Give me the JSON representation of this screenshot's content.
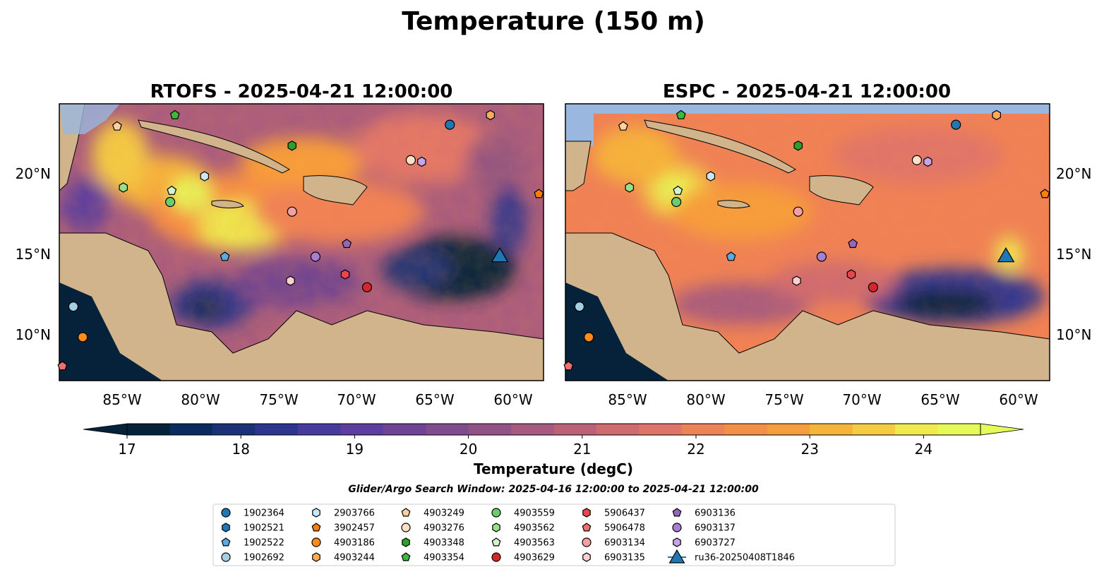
{
  "figure": {
    "suptitle": "Temperature (150 m)",
    "search_window": "Glider/Argo Search Window: 2025-04-16 12:00:00 to 2025-04-21 12:00:00"
  },
  "chart_data": [
    {
      "type": "heatmap",
      "title": "RTOFS - 2025-04-21 12:00:00",
      "variable": "Temperature at 150 m",
      "x_ticks": [
        "85°W",
        "80°W",
        "75°W",
        "70°W",
        "65°W",
        "60°W"
      ],
      "y_ticks": [
        "20°N",
        "15°N",
        "10°N"
      ],
      "xlim": [
        -89,
        -58
      ],
      "ylim": [
        7,
        24.2
      ],
      "features": [
        "warm eddies (24+ degC) near 80-75°W, 17-19°N",
        "cold pool (<17.5 degC) near 67-62°W, 11-13°N",
        "cold core near 81°W, 11°N"
      ]
    },
    {
      "type": "heatmap",
      "title": "ESPC - 2025-04-21 12:00:00",
      "variable": "Temperature at 150 m",
      "x_ticks": [
        "85°W",
        "80°W",
        "75°W",
        "70°W",
        "65°W",
        "60°W"
      ],
      "y_ticks": [
        "20°N",
        "15°N",
        "10°N"
      ],
      "xlim": [
        -89,
        -58
      ],
      "ylim": [
        7,
        24.2
      ],
      "features": [
        "broad warm field 22-24 degC",
        "warm blob near 80-82°W, 18-19°N",
        "cold band (<18 degC) along 62-67°W, 11-12°N"
      ]
    }
  ],
  "colorbar": {
    "label": "Temperature (degC)",
    "ticks": [
      "17",
      "18",
      "19",
      "20",
      "21",
      "22",
      "23",
      "24"
    ],
    "tick_values": [
      17,
      18,
      19,
      20,
      21,
      22,
      23,
      24
    ],
    "range": [
      16.5,
      24.75
    ],
    "extend": "both",
    "colors": [
      "#06223a",
      "#0b2b5e",
      "#1b3277",
      "#2d3591",
      "#463aa0",
      "#5d3d9f",
      "#6e4393",
      "#7f4c8c",
      "#905383",
      "#a65a7f",
      "#bc6278",
      "#cf6a71",
      "#e0746a",
      "#ef8156",
      "#f58f45",
      "#f79e3a",
      "#f5b43a",
      "#f3cc44",
      "#eeea4f",
      "#e5fa5a"
    ]
  },
  "platforms": [
    {
      "id": "1902364",
      "marker": "circle",
      "color": "#1f77b4",
      "lon": -64.0,
      "lat": 22.9
    },
    {
      "id": "1902521",
      "marker": "hexagon",
      "color": "#1f77b4",
      "lon": null,
      "lat": null
    },
    {
      "id": "1902522",
      "marker": "pentagon",
      "color": "#5aa9e0",
      "lon": -78.4,
      "lat": 14.7
    },
    {
      "id": "1902692",
      "marker": "circle",
      "color": "#a6cee3",
      "lon": -88.1,
      "lat": 11.6
    },
    {
      "id": "2903766",
      "marker": "hexagon",
      "color": "#cde6f7",
      "lon": -79.7,
      "lat": 19.7
    },
    {
      "id": "3902457",
      "marker": "pentagon",
      "color": "#ff7f0e",
      "lon": -58.3,
      "lat": 18.6
    },
    {
      "id": "4903186",
      "marker": "circle",
      "color": "#ff8c1a",
      "lon": -87.5,
      "lat": 9.7
    },
    {
      "id": "4903244",
      "marker": "hexagon",
      "color": "#ffab5c",
      "lon": -61.4,
      "lat": 23.5
    },
    {
      "id": "4903249",
      "marker": "pentagon",
      "color": "#ffd0a0",
      "lon": -85.3,
      "lat": 22.8
    },
    {
      "id": "4903276",
      "marker": "circle",
      "color": "#ffe0c2",
      "lon": -66.5,
      "lat": 20.7
    },
    {
      "id": "4903348",
      "marker": "hexagon",
      "color": "#2ca02c",
      "lon": -74.1,
      "lat": 21.6
    },
    {
      "id": "4903354",
      "marker": "pentagon",
      "color": "#3cb83c",
      "lon": -81.6,
      "lat": 23.5
    },
    {
      "id": "4903559",
      "marker": "circle",
      "color": "#6ccc6c",
      "lon": -81.9,
      "lat": 18.1
    },
    {
      "id": "4903562",
      "marker": "hexagon",
      "color": "#98df8a",
      "lon": -84.9,
      "lat": 19.0
    },
    {
      "id": "4903563",
      "marker": "pentagon",
      "color": "#d4f5cc",
      "lon": -81.8,
      "lat": 18.8
    },
    {
      "id": "4903629",
      "marker": "circle",
      "color": "#d62728",
      "lon": -69.3,
      "lat": 12.8
    },
    {
      "id": "5906437",
      "marker": "hexagon",
      "color": "#e8474a",
      "lon": -70.7,
      "lat": 13.6
    },
    {
      "id": "5906478",
      "marker": "pentagon",
      "color": "#f07070",
      "lon": -88.8,
      "lat": 7.9
    },
    {
      "id": "6903134",
      "marker": "circle",
      "color": "#f4a0a0",
      "lon": -74.1,
      "lat": 17.5
    },
    {
      "id": "6903135",
      "marker": "hexagon",
      "color": "#fcd0d0",
      "lon": -74.2,
      "lat": 13.2
    },
    {
      "id": "6903136",
      "marker": "pentagon",
      "color": "#9467bd",
      "lon": -70.6,
      "lat": 15.5
    },
    {
      "id": "6903137",
      "marker": "circle",
      "color": "#a77fd0",
      "lon": -72.6,
      "lat": 14.7
    },
    {
      "id": "6903727",
      "marker": "hexagon",
      "color": "#c5a5e6",
      "lon": -65.8,
      "lat": 20.6
    },
    {
      "id": "ru36-20250408T1846",
      "marker": "triangle",
      "color": "#1f77b4",
      "lon": -60.8,
      "lat": 14.8
    }
  ]
}
